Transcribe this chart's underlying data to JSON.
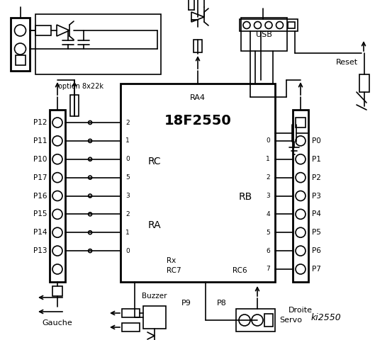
{
  "bg_color": "#ffffff",
  "line_color": "#000000",
  "title": "ki2550",
  "chip_label": "18F2550",
  "left_pins": [
    "P12",
    "P11",
    "P10",
    "P17",
    "P16",
    "P15",
    "P14",
    "P13"
  ],
  "right_pins": [
    "P0",
    "P1",
    "P2",
    "P3",
    "P4",
    "P5",
    "P6",
    "P7"
  ],
  "rc_pins": [
    "2",
    "1",
    "0",
    "5",
    "3",
    "2",
    "1",
    "0"
  ],
  "rb_pins": [
    "0",
    "1",
    "2",
    "3",
    "4",
    "5",
    "6",
    "7"
  ],
  "left_label": "Gauche",
  "right_label": "Droite",
  "ra_label": "RA",
  "rc_label": "RC",
  "rb_label": "RB",
  "ra4_label": "RA4",
  "rx_label": "Rx",
  "rc7_label": "RC7",
  "rc6_label": "RC6",
  "usb_label": "USB",
  "reset_label": "Reset",
  "servo_label": "Servo",
  "buzzer_label": "Buzzer",
  "p8_label": "P8",
  "p9_label": "P9",
  "option_label": "option 8x22k"
}
